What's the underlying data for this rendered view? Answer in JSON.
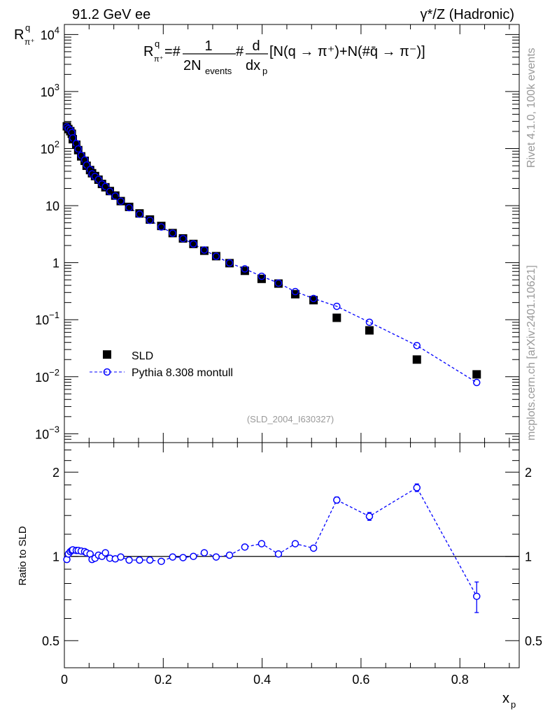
{
  "header": {
    "left": "91.2 GeV ee",
    "right": "γ*/Z (Hadronic)"
  },
  "side_text": {
    "rivet": "Rivet 4.1.0,  100k events",
    "mcplots": "mcplots.cern.ch [arXiv:2401.10621]"
  },
  "colors": {
    "mc": "#0000ff",
    "data": "#000000",
    "watermark": "#999999"
  },
  "chart_data": {
    "type": "scatter",
    "title": "R^q_π+ = # 1/(2N_events) # d/dx_p [N(q → π+)+N(#q̄ → π-)]",
    "formula": {
      "lhs": "R",
      "lhs_sup": "q",
      "lhs_sub": "π⁺",
      "eq": "=#",
      "frac1_num": "1",
      "frac1_den": "2N",
      "frac1_den_sub": "events",
      "hash": "#",
      "frac2_num": "d",
      "frac2_den": "dx",
      "frac2_den_sub": "p",
      "bracket": "[N(q → π⁺)+N(#q̄ → π⁻)]"
    },
    "ylabel": {
      "base": "R",
      "sup": "q",
      "sub": "π⁺"
    },
    "xlabel": {
      "base": "x",
      "sub": "p"
    },
    "ratio_ylabel": "Ratio to SLD",
    "analysis_tag": "(SLD_2004_I630327)",
    "xlim": [
      0,
      0.92
    ],
    "ylim": [
      0.0007,
      15000
    ],
    "yscale": "log",
    "ratio_ylim": [
      0.4,
      2.55
    ],
    "ratio_yscale": "log",
    "x_ticks": [
      "0",
      "0.2",
      "0.4",
      "0.6",
      "0.8"
    ],
    "x_tick_values": [
      0,
      0.2,
      0.4,
      0.6,
      0.8
    ],
    "y_ticks": [
      {
        "v": 10000,
        "base": "10",
        "exp": "4"
      },
      {
        "v": 1000,
        "base": "10",
        "exp": "3"
      },
      {
        "v": 100,
        "base": "10",
        "exp": "2"
      },
      {
        "v": 10,
        "base": "10",
        "exp": ""
      },
      {
        "v": 1,
        "base": "1",
        "exp": ""
      },
      {
        "v": 0.1,
        "base": "10",
        "exp": "−1"
      },
      {
        "v": 0.01,
        "base": "10",
        "exp": "−2"
      },
      {
        "v": 0.001,
        "base": "10",
        "exp": "−3"
      }
    ],
    "ratio_ticks": [
      {
        "v": 2,
        "label": "2"
      },
      {
        "v": 1,
        "label": "1"
      },
      {
        "v": 0.5,
        "label": "0.5"
      }
    ],
    "legend": {
      "placement": "lower-left",
      "entries": [
        "SLD",
        "Pythia 8.308 montull"
      ]
    },
    "x": [
      0.005,
      0.008,
      0.012,
      0.015,
      0.017,
      0.024,
      0.028,
      0.034,
      0.041,
      0.045,
      0.052,
      0.056,
      0.062,
      0.069,
      0.076,
      0.083,
      0.092,
      0.103,
      0.114,
      0.131,
      0.152,
      0.173,
      0.196,
      0.219,
      0.24,
      0.261,
      0.283,
      0.307,
      0.334,
      0.365,
      0.399,
      0.433,
      0.467,
      0.504,
      0.551,
      0.617,
      0.713,
      0.834
    ],
    "series": [
      {
        "name": "SLD",
        "marker": "square",
        "values": [
          246,
          220,
          202,
          182,
          146,
          117,
          94,
          73,
          61,
          50,
          42,
          37,
          33,
          28.5,
          24,
          21,
          18,
          15,
          12,
          9.5,
          7.3,
          5.7,
          4.4,
          3.3,
          2.66,
          2.13,
          1.62,
          1.3,
          0.98,
          0.72,
          0.52,
          0.43,
          0.28,
          0.22,
          0.108,
          0.065,
          0.02,
          0.011
        ]
      },
      {
        "name": "Pythia 8.308 montull",
        "marker": "open-circle",
        "line": "dashed",
        "ratio": [
          0.975,
          1.02,
          1.04,
          1.05,
          1.055,
          1.05,
          1.05,
          1.045,
          1.04,
          1.03,
          1.02,
          0.975,
          0.985,
          1.01,
          1.0,
          1.03,
          0.985,
          0.98,
          0.995,
          0.97,
          0.97,
          0.97,
          0.96,
          0.995,
          0.99,
          1.0,
          1.03,
          0.995,
          1.01,
          1.08,
          1.11,
          1.02,
          1.11,
          1.07,
          1.59,
          1.39,
          1.76,
          0.72
        ],
        "ratio_err": [
          0.005,
          0.005,
          0.005,
          0.005,
          0.005,
          0.005,
          0.005,
          0.005,
          0.005,
          0.005,
          0.005,
          0.005,
          0.005,
          0.005,
          0.005,
          0.005,
          0.005,
          0.005,
          0.005,
          0.005,
          0.006,
          0.006,
          0.006,
          0.007,
          0.007,
          0.008,
          0.009,
          0.01,
          0.01,
          0.012,
          0.014,
          0.016,
          0.02,
          0.022,
          0.04,
          0.045,
          0.055,
          0.09
        ]
      }
    ]
  }
}
